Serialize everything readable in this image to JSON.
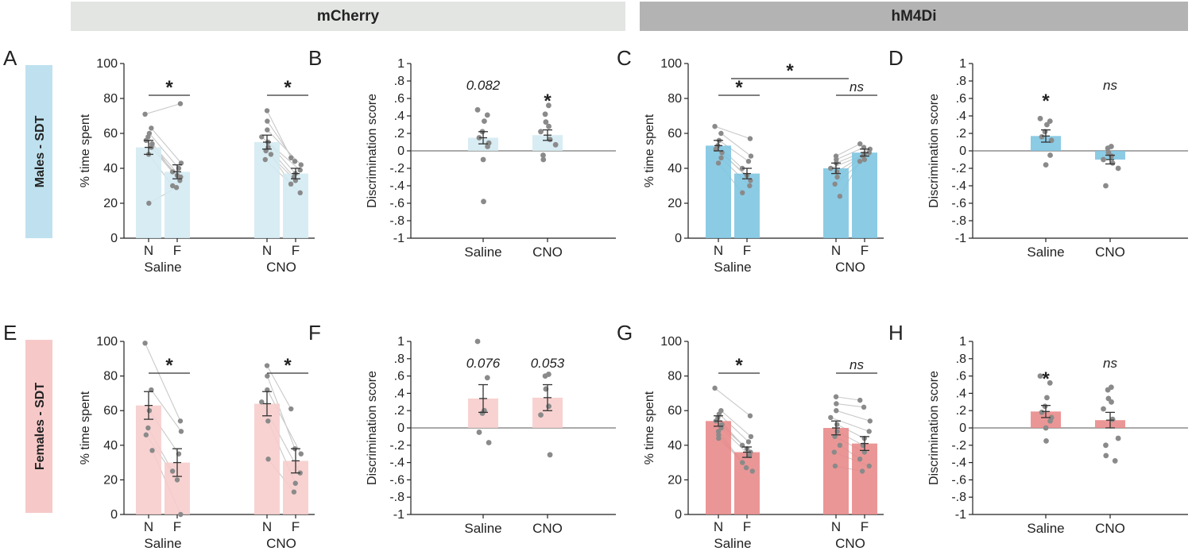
{
  "headers": {
    "mcherry": "mCherry",
    "hm4di": "hM4Di"
  },
  "row_labels": {
    "males": "Males - SDT",
    "females": "Females - SDT"
  },
  "colors": {
    "mcherry_male": "#d3e9f1",
    "hm4di_male": "#7cc4e0",
    "mcherry_female": "#f6cccb",
    "hm4di_female": "#e88788",
    "header_mcherry_bg": "#e3e5e3",
    "header_hm4di_bg": "#b3b3b3",
    "label_male_bg": "#bfe1ef",
    "label_female_bg": "#f6c9c8"
  },
  "chart_data": [
    {
      "id": "A",
      "letter": "A",
      "type": "bar",
      "row": "males",
      "group": "mcherry",
      "ylabel": "% time spent",
      "ylim": [
        0,
        100
      ],
      "yticks": [
        0,
        20,
        40,
        60,
        80,
        100
      ],
      "conditions": [
        {
          "name": "Saline",
          "bars": [
            {
              "label": "N",
              "value": 52,
              "sem": 4
            },
            {
              "label": "F",
              "value": 38,
              "sem": 4
            }
          ],
          "annotation": "*",
          "points": {
            "N": [
              71,
              63,
              60,
              58,
              56,
              54,
              52,
              48,
              20
            ],
            "F": [
              77,
              43,
              40,
              38,
              36,
              35,
              33,
              30,
              29
            ]
          }
        },
        {
          "name": "CNO",
          "bars": [
            {
              "label": "N",
              "value": 55,
              "sem": 4
            },
            {
              "label": "F",
              "value": 37,
              "sem": 3
            }
          ],
          "annotation": "*",
          "points": {
            "N": [
              73,
              67,
              62,
              58,
              55,
              52,
              50,
              48,
              45
            ],
            "F": [
              46,
              44,
              42,
              39,
              37,
              35,
              33,
              31,
              26
            ]
          }
        }
      ]
    },
    {
      "id": "B",
      "letter": "B",
      "type": "bar",
      "row": "males",
      "group": "mcherry",
      "ylabel": "Discrimination score",
      "ylim": [
        -1,
        1
      ],
      "yticks": [
        -1,
        -0.8,
        -0.6,
        -0.4,
        -0.2,
        0,
        0.2,
        0.4,
        0.6,
        0.8,
        1
      ],
      "categories": [
        "Saline",
        "CNO"
      ],
      "values": [
        0.15,
        0.18
      ],
      "sem": [
        0.07,
        0.06
      ],
      "annotations": [
        "0.082",
        "*"
      ],
      "points": [
        [
          0.47,
          0.41,
          0.34,
          0.22,
          0.15,
          0.09,
          0.05,
          -0.1,
          -0.58
        ],
        [
          0.52,
          0.42,
          0.33,
          0.28,
          0.22,
          0.13,
          0.07,
          -0.05,
          -0.1
        ]
      ]
    },
    {
      "id": "C",
      "letter": "C",
      "type": "bar",
      "row": "males",
      "group": "hm4di",
      "ylabel": "% time spent",
      "ylim": [
        0,
        100
      ],
      "yticks": [
        0,
        20,
        40,
        60,
        80,
        100
      ],
      "cross_annotation": "*",
      "conditions": [
        {
          "name": "Saline",
          "bars": [
            {
              "label": "N",
              "value": 53,
              "sem": 3
            },
            {
              "label": "F",
              "value": 37,
              "sem": 3
            }
          ],
          "annotation": "*",
          "points": {
            "N": [
              64,
              60,
              56,
              53,
              51,
              49,
              46,
              43
            ],
            "F": [
              57,
              47,
              44,
              40,
              36,
              33,
              30,
              26
            ]
          }
        },
        {
          "name": "CNO",
          "bars": [
            {
              "label": "N",
              "value": 40,
              "sem": 3
            },
            {
              "label": "F",
              "value": 49,
              "sem": 2
            }
          ],
          "annotation": "ns",
          "points": {
            "N": [
              47,
              45,
              43,
              40,
              38,
              35,
              31,
              24
            ],
            "F": [
              54,
              52,
              51,
              49,
              48,
              47,
              45,
              44
            ]
          }
        }
      ]
    },
    {
      "id": "D",
      "letter": "D",
      "type": "bar",
      "row": "males",
      "group": "hm4di",
      "ylabel": "Discrimination score",
      "ylim": [
        -1,
        1
      ],
      "yticks": [
        -1,
        -0.8,
        -0.6,
        -0.4,
        -0.2,
        0,
        0.2,
        0.4,
        0.6,
        0.8,
        1
      ],
      "categories": [
        "Saline",
        "CNO"
      ],
      "values": [
        0.17,
        -0.1
      ],
      "sem": [
        0.07,
        0.05
      ],
      "annotations": [
        "*",
        "ns"
      ],
      "points": [
        [
          0.37,
          0.34,
          0.3,
          0.22,
          0.16,
          0.12,
          -0.05,
          -0.16
        ],
        [
          0.05,
          0.03,
          -0.02,
          -0.06,
          -0.1,
          -0.14,
          -0.2,
          -0.4
        ]
      ]
    },
    {
      "id": "E",
      "letter": "E",
      "type": "bar",
      "row": "females",
      "group": "mcherry",
      "ylabel": "% time spent",
      "ylim": [
        0,
        100
      ],
      "yticks": [
        0,
        20,
        40,
        60,
        80,
        100
      ],
      "conditions": [
        {
          "name": "Saline",
          "bars": [
            {
              "label": "N",
              "value": 63,
              "sem": 8
            },
            {
              "label": "F",
              "value": 30,
              "sem": 8
            }
          ],
          "annotation": "*",
          "points": {
            "N": [
              99,
              72,
              60,
              50,
              46,
              37
            ],
            "F": [
              54,
              48,
              35,
              25,
              20,
              0
            ]
          }
        },
        {
          "name": "CNO",
          "bars": [
            {
              "label": "N",
              "value": 64,
              "sem": 7
            },
            {
              "label": "F",
              "value": 31,
              "sem": 7
            }
          ],
          "annotation": "*",
          "points": {
            "N": [
              86,
              80,
              72,
              65,
              54,
              32
            ],
            "F": [
              61,
              38,
              35,
              24,
              18,
              13
            ]
          }
        }
      ]
    },
    {
      "id": "F",
      "letter": "F",
      "type": "bar",
      "row": "females",
      "group": "mcherry",
      "ylabel": "Discrimination score",
      "ylim": [
        -1,
        1
      ],
      "yticks": [
        -1,
        -0.8,
        -0.6,
        -0.4,
        -0.2,
        0,
        0.2,
        0.4,
        0.6,
        0.8,
        1
      ],
      "categories": [
        "Saline",
        "CNO"
      ],
      "values": [
        0.34,
        0.35
      ],
      "sem": [
        0.16,
        0.15
      ],
      "annotations": [
        "0.076",
        "0.053"
      ],
      "points": [
        [
          1.0,
          0.58,
          0.2,
          0.17,
          -0.05,
          -0.17
        ],
        [
          0.62,
          0.6,
          0.45,
          0.25,
          0.15,
          -0.31
        ]
      ]
    },
    {
      "id": "G",
      "letter": "G",
      "type": "bar",
      "row": "females",
      "group": "hm4di",
      "ylabel": "% time spent",
      "ylim": [
        0,
        100
      ],
      "yticks": [
        0,
        20,
        40,
        60,
        80,
        100
      ],
      "conditions": [
        {
          "name": "Saline",
          "bars": [
            {
              "label": "N",
              "value": 54,
              "sem": 3
            },
            {
              "label": "F",
              "value": 36,
              "sem": 3
            }
          ],
          "annotation": "*",
          "points": {
            "N": [
              73,
              60,
              58,
              56,
              54,
              52,
              50,
              48,
              46,
              44
            ],
            "F": [
              57,
              45,
              42,
              40,
              38,
              36,
              34,
              30,
              27,
              25
            ]
          }
        },
        {
          "name": "CNO",
          "bars": [
            {
              "label": "N",
              "value": 50,
              "sem": 4
            },
            {
              "label": "F",
              "value": 41,
              "sem": 4
            }
          ],
          "annotation": "ns",
          "points": {
            "N": [
              68,
              64,
              60,
              56,
              52,
              48,
              45,
              40,
              36,
              28
            ],
            "F": [
              66,
              62,
              54,
              48,
              44,
              40,
              36,
              32,
              28,
              25
            ]
          }
        }
      ]
    },
    {
      "id": "H",
      "letter": "H",
      "type": "bar",
      "row": "females",
      "group": "hm4di",
      "ylabel": "Discrimination score",
      "ylim": [
        -1,
        1
      ],
      "yticks": [
        -1,
        -0.8,
        -0.6,
        -0.4,
        -0.2,
        0,
        0.2,
        0.4,
        0.6,
        0.8,
        1
      ],
      "categories": [
        "Saline",
        "CNO"
      ],
      "values": [
        0.19,
        0.09
      ],
      "sem": [
        0.07,
        0.09
      ],
      "annotations": [
        "*",
        "ns"
      ],
      "points": [
        [
          0.6,
          0.52,
          0.35,
          0.25,
          0.18,
          0.12,
          0.08,
          0.0,
          -0.15
        ],
        [
          0.47,
          0.44,
          0.34,
          0.3,
          0.22,
          0.1,
          -0.12,
          -0.2,
          -0.32,
          -0.38
        ]
      ]
    }
  ]
}
